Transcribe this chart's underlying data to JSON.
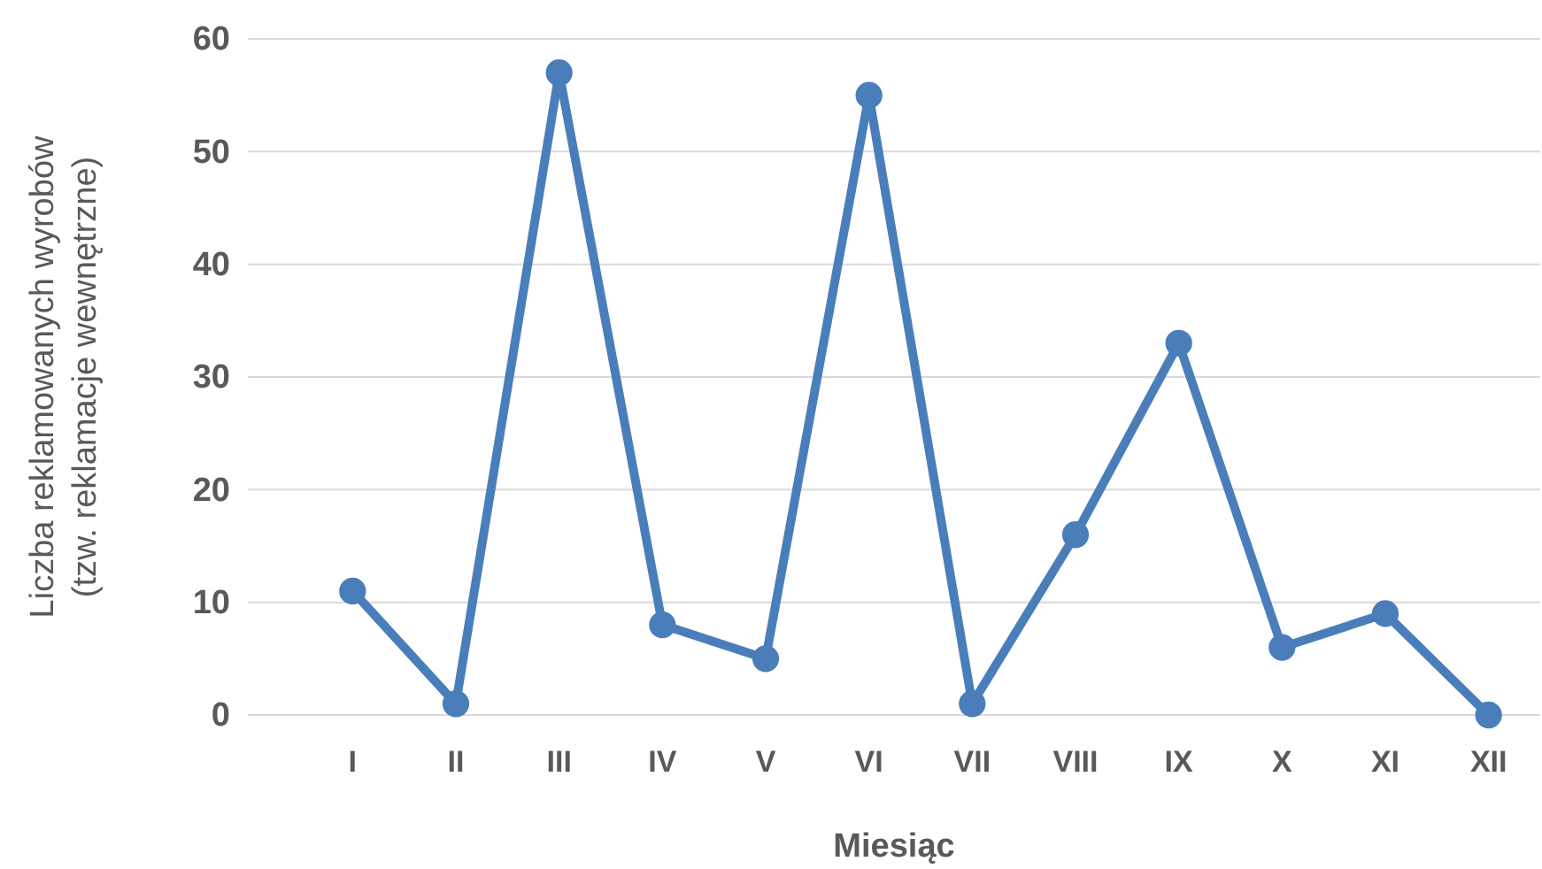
{
  "chart_data": {
    "type": "line",
    "xlabel": "Miesiąc",
    "ylabel": "Liczba reklamowanych wyrobów\n(tzw. reklamacje wewnętrzne)",
    "categories": [
      "I",
      "II",
      "III",
      "IV",
      "V",
      "VI",
      "VII",
      "VIII",
      "IX",
      "X",
      "XI",
      "XII"
    ],
    "series": [
      {
        "color": "#4a7ebb",
        "values": [
          11,
          1,
          57,
          8,
          5,
          55,
          1,
          16,
          33,
          6,
          9,
          0
        ]
      }
    ],
    "ylim": [
      0,
      60
    ],
    "yticks": [
      0,
      10,
      20,
      30,
      40,
      50,
      60
    ],
    "grid": "y",
    "marker": "circle",
    "line_style": "solid"
  }
}
